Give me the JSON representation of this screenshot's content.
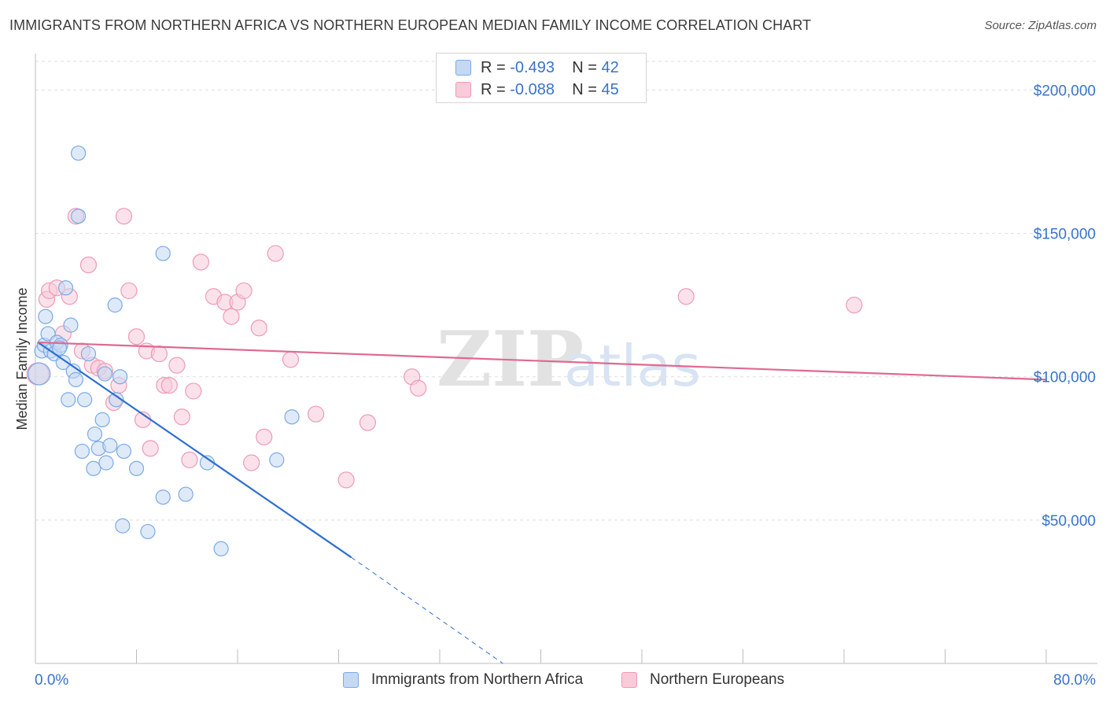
{
  "title": "IMMIGRANTS FROM NORTHERN AFRICA VS NORTHERN EUROPEAN MEDIAN FAMILY INCOME CORRELATION CHART",
  "source": "Source: ZipAtlas.com",
  "watermark": {
    "zip": "ZIP",
    "atlas": "atlas"
  },
  "stats": [
    {
      "r_label": "R = ",
      "r_value": "-0.493",
      "n_label": "N = ",
      "n_value": "42"
    },
    {
      "r_label": "R = ",
      "r_value": "-0.088",
      "n_label": "N = ",
      "n_value": "45"
    }
  ],
  "chart_data": {
    "type": "scatter",
    "ylabel": "Median Family Income",
    "xlabel": "",
    "xlim": [
      0,
      80
    ],
    "ylim": [
      0,
      210000
    ],
    "x_tick_labels": [
      "0.0%",
      "80.0%"
    ],
    "y_ticks": [
      {
        "value": 50000,
        "label": "$50,000"
      },
      {
        "value": 100000,
        "label": "$100,000"
      },
      {
        "value": 150000,
        "label": "$150,000"
      },
      {
        "value": 200000,
        "label": "$200,000"
      }
    ],
    "grid": true,
    "legend_position": "bottom",
    "series": [
      {
        "name": "Immigrants from Northern Africa",
        "color": "#7aaae6",
        "fill": "#c5d9f4",
        "line_color": "#2d6fd0",
        "trend": {
          "x1": 0.2,
          "y1": 112000,
          "x2": 25,
          "y2": 37000,
          "dash_to_x": 37,
          "dash_to_y": 0
        },
        "points": [
          [
            0.3,
            101000,
            14
          ],
          [
            0.5,
            109000,
            9
          ],
          [
            0.7,
            111000,
            9
          ],
          [
            0.8,
            121000,
            9
          ],
          [
            1.0,
            115000,
            9
          ],
          [
            1.2,
            109000,
            9
          ],
          [
            1.5,
            108000,
            9
          ],
          [
            1.7,
            112000,
            9
          ],
          [
            2.0,
            111000,
            9
          ],
          [
            2.2,
            105000,
            9
          ],
          [
            2.4,
            131000,
            9
          ],
          [
            2.6,
            92000,
            9
          ],
          [
            2.8,
            118000,
            9
          ],
          [
            3.0,
            102000,
            9
          ],
          [
            3.2,
            99000,
            9
          ],
          [
            3.4,
            156000,
            9
          ],
          [
            3.4,
            178000,
            9
          ],
          [
            3.7,
            74000,
            9
          ],
          [
            3.9,
            92000,
            9
          ],
          [
            4.2,
            108000,
            9
          ],
          [
            4.6,
            68000,
            9
          ],
          [
            4.7,
            80000,
            9
          ],
          [
            5.0,
            75000,
            9
          ],
          [
            5.3,
            85000,
            9
          ],
          [
            5.5,
            101000,
            9
          ],
          [
            5.6,
            70000,
            9
          ],
          [
            5.9,
            76000,
            9
          ],
          [
            6.3,
            125000,
            9
          ],
          [
            6.4,
            92000,
            9
          ],
          [
            6.7,
            100000,
            9
          ],
          [
            6.9,
            48000,
            9
          ],
          [
            7.0,
            74000,
            9
          ],
          [
            8.0,
            68000,
            9
          ],
          [
            8.9,
            46000,
            9
          ],
          [
            10.1,
            143000,
            9
          ],
          [
            10.1,
            58000,
            9
          ],
          [
            11.9,
            59000,
            9
          ],
          [
            13.6,
            70000,
            9
          ],
          [
            14.7,
            40000,
            9
          ],
          [
            19.1,
            71000,
            9
          ],
          [
            20.3,
            86000,
            9
          ],
          [
            1.9,
            110000,
            9
          ]
        ]
      },
      {
        "name": "Northern Europeans",
        "color": "#ee9ab5",
        "fill": "#f8cbd9",
        "line_color": "#e0698f",
        "trend": {
          "x1": 0.2,
          "y1": 112000,
          "x2": 80,
          "y2": 99000
        },
        "points": [
          [
            0.2,
            101000,
            14
          ],
          [
            0.9,
            127000,
            10
          ],
          [
            1.1,
            130000,
            10
          ],
          [
            1.7,
            131000,
            10
          ],
          [
            2.2,
            115000,
            10
          ],
          [
            2.7,
            128000,
            10
          ],
          [
            3.2,
            156000,
            10
          ],
          [
            3.7,
            109000,
            10
          ],
          [
            4.2,
            139000,
            10
          ],
          [
            4.5,
            104000,
            10
          ],
          [
            5.0,
            103000,
            10
          ],
          [
            5.5,
            102000,
            10
          ],
          [
            6.2,
            91000,
            10
          ],
          [
            6.6,
            97000,
            10
          ],
          [
            7.0,
            156000,
            10
          ],
          [
            7.4,
            130000,
            10
          ],
          [
            8.0,
            114000,
            10
          ],
          [
            8.5,
            85000,
            10
          ],
          [
            8.8,
            109000,
            10
          ],
          [
            9.1,
            75000,
            10
          ],
          [
            9.8,
            108000,
            10
          ],
          [
            10.2,
            97000,
            10
          ],
          [
            10.6,
            97000,
            10
          ],
          [
            11.2,
            104000,
            10
          ],
          [
            11.6,
            86000,
            10
          ],
          [
            12.2,
            71000,
            10
          ],
          [
            12.5,
            95000,
            10
          ],
          [
            13.1,
            140000,
            10
          ],
          [
            14.1,
            128000,
            10
          ],
          [
            15.0,
            126000,
            10
          ],
          [
            15.5,
            121000,
            10
          ],
          [
            16.0,
            126000,
            10
          ],
          [
            16.5,
            130000,
            10
          ],
          [
            17.1,
            70000,
            10
          ],
          [
            17.7,
            117000,
            10
          ],
          [
            18.1,
            79000,
            10
          ],
          [
            19.0,
            143000,
            10
          ],
          [
            20.2,
            106000,
            10
          ],
          [
            22.2,
            87000,
            10
          ],
          [
            24.6,
            64000,
            10
          ],
          [
            26.3,
            84000,
            10
          ],
          [
            29.8,
            100000,
            10
          ],
          [
            30.3,
            96000,
            10
          ],
          [
            51.5,
            128000,
            10
          ],
          [
            64.8,
            125000,
            10
          ]
        ]
      }
    ]
  }
}
